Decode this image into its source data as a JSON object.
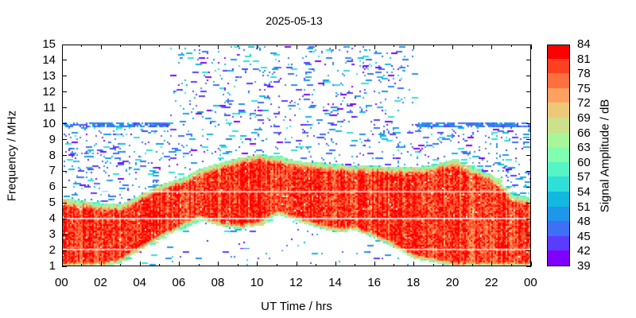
{
  "chart_data": {
    "type": "heatmap",
    "title": "2025-05-13",
    "xlabel": "UT Time / hrs",
    "ylabel": "Frequency / MHz",
    "colorbar_label": "Signal Amplitude / dB",
    "xlim": [
      0,
      24
    ],
    "ylim": [
      1,
      15
    ],
    "x_ticks": [
      "00",
      "02",
      "04",
      "06",
      "08",
      "10",
      "12",
      "14",
      "16",
      "18",
      "20",
      "22",
      "00"
    ],
    "y_ticks": [
      "1",
      "2",
      "3",
      "4",
      "5",
      "6",
      "7",
      "8",
      "9",
      "10",
      "11",
      "12",
      "13",
      "14",
      "15"
    ],
    "colorbar_ticks": [
      "39",
      "42",
      "45",
      "48",
      "51",
      "54",
      "57",
      "60",
      "63",
      "66",
      "69",
      "72",
      "75",
      "78",
      "81",
      "84"
    ],
    "colorbar_range": [
      39,
      84
    ],
    "colorbar_colors": [
      "#7f00ff",
      "#5a3cff",
      "#3f6ff5",
      "#1e96ea",
      "#12b8e0",
      "#2ee0d8",
      "#55f5c5",
      "#80ffb0",
      "#a8f59a",
      "#cde08a",
      "#ecc878",
      "#ffa060",
      "#ff7040",
      "#ff4020",
      "#ff0000"
    ],
    "echo_envelope": {
      "hours": [
        0,
        1,
        2,
        3,
        4,
        5,
        6,
        7,
        8,
        9,
        10,
        11,
        12,
        13,
        14,
        15,
        16,
        17,
        18,
        19,
        20,
        21,
        22,
        23,
        24
      ],
      "upper_mhz": [
        5.3,
        5.2,
        5.0,
        5.0,
        5.6,
        6.2,
        6.6,
        7.2,
        7.6,
        7.9,
        8.1,
        8.0,
        7.7,
        7.6,
        7.5,
        7.4,
        7.4,
        7.3,
        7.3,
        7.5,
        7.8,
        7.3,
        6.8,
        5.6,
        5.3
      ],
      "lower_mhz": [
        1.0,
        1.0,
        1.0,
        1.3,
        2.1,
        2.8,
        3.4,
        4.0,
        3.6,
        3.4,
        3.6,
        4.3,
        3.9,
        3.5,
        3.2,
        3.3,
        2.8,
        2.2,
        1.5,
        1.3,
        1.0,
        1.0,
        1.0,
        1.0,
        1.0
      ],
      "peak_db": 80
    },
    "scan_range_mhz": {
      "night_max": 10,
      "day_max": 15,
      "day_start_hr": 5.5,
      "day_end_hr": 18.0
    },
    "gap_lines_mhz": [
      2.1,
      4.05,
      5.75
    ]
  }
}
